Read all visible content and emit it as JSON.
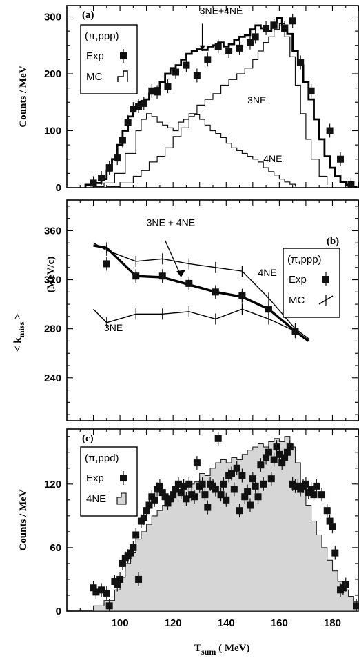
{
  "chart_data": [
    {
      "panel": "(a)",
      "type": "line",
      "ylabel": "Counts / MeV",
      "xlim": [
        80,
        190
      ],
      "ylim": [
        0,
        320
      ],
      "yticks": [
        0,
        100,
        200,
        300
      ],
      "legend": {
        "title": "(π,ppp)",
        "entries": [
          "Exp",
          "MC"
        ]
      },
      "annotations": [
        {
          "text": "3NE+4NE",
          "x": 130,
          "y": 305
        },
        {
          "text": "3NE",
          "x": 148,
          "y": 148
        },
        {
          "text": "4NE",
          "x": 154,
          "y": 45
        }
      ],
      "exp": {
        "name": "Exp",
        "x": [
          90,
          93,
          96,
          99,
          101,
          103,
          105,
          107,
          109,
          112,
          114,
          118,
          121,
          125,
          129,
          133,
          137,
          141,
          145,
          149,
          151,
          155,
          158,
          162,
          165,
          168,
          172,
          179,
          183,
          187
        ],
        "y": [
          8,
          17,
          35,
          52,
          83,
          115,
          138,
          143,
          148,
          170,
          168,
          178,
          203,
          215,
          197,
          225,
          248,
          240,
          245,
          255,
          265,
          280,
          285,
          280,
          293,
          220,
          170,
          100,
          50,
          5
        ]
      },
      "mc_total": {
        "name": "MC",
        "x": [
          87,
          90,
          93,
          95,
          97,
          99,
          101,
          103,
          105,
          107,
          109,
          111,
          113,
          115,
          117,
          119,
          121,
          123,
          125,
          127,
          129,
          131,
          133,
          135,
          137,
          139,
          141,
          143,
          145,
          147,
          149,
          151,
          153,
          155,
          157,
          159,
          161,
          163,
          165,
          167,
          169,
          171,
          173,
          175,
          177,
          179,
          181,
          183,
          185,
          187,
          189
        ],
        "y": [
          5,
          8,
          15,
          30,
          50,
          75,
          100,
          125,
          142,
          150,
          155,
          165,
          175,
          185,
          200,
          210,
          215,
          225,
          235,
          240,
          243,
          242,
          248,
          250,
          255,
          248,
          252,
          260,
          265,
          268,
          278,
          285,
          280,
          275,
          290,
          298,
          285,
          270,
          240,
          215,
          185,
          155,
          120,
          85,
          55,
          35,
          20,
          10,
          5,
          2,
          0
        ]
      },
      "mc_3ne": {
        "name": "3NE",
        "x": [
          95,
          100,
          105,
          108,
          111,
          114,
          117,
          120,
          123,
          126,
          129,
          132,
          135,
          138,
          141,
          144,
          147,
          150,
          152,
          154,
          156,
          158,
          160,
          162,
          164,
          166,
          168,
          170,
          172,
          175,
          178
        ],
        "y": [
          2,
          8,
          20,
          30,
          45,
          55,
          70,
          90,
          105,
          130,
          145,
          155,
          165,
          180,
          190,
          200,
          210,
          225,
          240,
          255,
          265,
          278,
          288,
          265,
          230,
          180,
          130,
          85,
          50,
          20,
          5
        ]
      },
      "mc_4ne": {
        "name": "4NE",
        "x": [
          90,
          94,
          98,
          102,
          106,
          108,
          110,
          112,
          114,
          116,
          118,
          120,
          122,
          124,
          126,
          128,
          130,
          132,
          134,
          136,
          138,
          140,
          142,
          144,
          146,
          148,
          150,
          152,
          154,
          156,
          158,
          160,
          162,
          164,
          166
        ],
        "y": [
          2,
          8,
          25,
          60,
          100,
          120,
          130,
          125,
          115,
          110,
          105,
          100,
          115,
          120,
          125,
          128,
          120,
          110,
          100,
          95,
          88,
          78,
          70,
          65,
          60,
          55,
          50,
          45,
          35,
          28,
          22,
          15,
          10,
          6,
          2
        ]
      }
    },
    {
      "panel": "(b)",
      "type": "line",
      "ylabel": "< k",
      "ylabel_sub": "miss",
      "ylabel_tail": " >",
      "ylabel_unit": "(MeV/c)",
      "xlim": [
        80,
        190
      ],
      "ylim": [
        205,
        385
      ],
      "yticks": [
        240,
        280,
        320,
        360
      ],
      "legend": {
        "title": "(π,ppp)",
        "entries": [
          "Exp",
          "MC"
        ]
      },
      "annotations": [
        {
          "text": "3NE + 4NE",
          "x": 110,
          "y": 364
        },
        {
          "text": "4NE",
          "x": 152,
          "y": 323
        },
        {
          "text": "3NE",
          "x": 94,
          "y": 278
        }
      ],
      "exp": {
        "name": "Exp",
        "x": [
          95,
          106,
          116,
          126,
          136,
          146,
          156,
          166
        ],
        "y": [
          333,
          323,
          323,
          317,
          310,
          307,
          296,
          278
        ]
      },
      "mc_total": {
        "name": "3NE + 4NE",
        "x": [
          90,
          95,
          106,
          116,
          126,
          136,
          146,
          156,
          166,
          171
        ],
        "y": [
          348,
          346,
          323,
          322,
          316,
          310,
          306,
          296,
          278,
          270
        ]
      },
      "mc_4ne": {
        "name": "4NE",
        "x": [
          90,
          95,
          106,
          116,
          126,
          136,
          146,
          156,
          166,
          171
        ],
        "y": [
          350,
          344,
          335,
          337,
          333,
          330,
          327,
          305,
          280,
          272
        ]
      },
      "mc_3ne": {
        "name": "3NE",
        "x": [
          90,
          95,
          106,
          116,
          126,
          136,
          146,
          156,
          166
        ],
        "y": [
          296,
          285,
          292,
          292,
          294,
          288,
          296,
          288,
          278
        ]
      }
    },
    {
      "panel": "(c)",
      "type": "line",
      "ylabel": "Counts / MeV",
      "xlabel": "T",
      "xlabel_sub": "sum",
      "xlabel_tail": " ( MeV)",
      "xlim": [
        80,
        190
      ],
      "ylim": [
        0,
        172
      ],
      "yticks": [
        0,
        60,
        120
      ],
      "xticks": [
        100,
        120,
        140,
        160,
        180
      ],
      "legend": {
        "title": "(π,ppd)",
        "entries": [
          "Exp",
          "4NE"
        ]
      },
      "exp": {
        "name": "Exp",
        "x": [
          90,
          91,
          93,
          95,
          96,
          98,
          99,
          100,
          101,
          102,
          103,
          104,
          105,
          106,
          107,
          108,
          109,
          110,
          111,
          112,
          113,
          114,
          115,
          116,
          117,
          118,
          119,
          120,
          121,
          122,
          123,
          124,
          125,
          126,
          127,
          128,
          129,
          130,
          131,
          132,
          133,
          134,
          135,
          136,
          137,
          138,
          139,
          140,
          141,
          142,
          143,
          144,
          145,
          146,
          147,
          148,
          149,
          150,
          151,
          152,
          153,
          154,
          155,
          156,
          157,
          158,
          159,
          160,
          161,
          162,
          163,
          164,
          165,
          166,
          167,
          168,
          169,
          170,
          171,
          172,
          173,
          174,
          176,
          178,
          179,
          180,
          181,
          183,
          184,
          185,
          189
        ],
        "y": [
          22,
          18,
          20,
          17,
          5,
          28,
          25,
          30,
          45,
          50,
          52,
          55,
          60,
          72,
          30,
          85,
          88,
          95,
          100,
          108,
          105,
          115,
          118,
          112,
          108,
          102,
          106,
          110,
          115,
          120,
          112,
          118,
          106,
          120,
          110,
          108,
          140,
          118,
          120,
          110,
          98,
          120,
          118,
          115,
          163,
          110,
          120,
          105,
          128,
          130,
          115,
          135,
          95,
          128,
          108,
          113,
          100,
          125,
          118,
          108,
          138,
          120,
          145,
          150,
          125,
          143,
          155,
          148,
          140,
          145,
          150,
          155,
          120,
          118,
          118,
          115,
          118,
          120,
          112,
          115,
          110,
          118,
          110,
          95,
          85,
          80,
          55,
          20,
          22,
          25,
          5
        ]
      },
      "mc_4ne": {
        "name": "4NE",
        "x": [
          90,
          94,
          98,
          100,
          102,
          104,
          106,
          108,
          110,
          112,
          114,
          116,
          118,
          120,
          122,
          124,
          126,
          128,
          130,
          132,
          134,
          136,
          138,
          140,
          142,
          144,
          146,
          148,
          150,
          152,
          154,
          156,
          158,
          160,
          162,
          164,
          166,
          168,
          170,
          172,
          174,
          176,
          178,
          180,
          182,
          184,
          186,
          188,
          190
        ],
        "y": [
          5,
          10,
          20,
          32,
          45,
          55,
          68,
          75,
          82,
          90,
          95,
          100,
          108,
          112,
          115,
          118,
          120,
          122,
          130,
          128,
          135,
          140,
          143,
          140,
          145,
          143,
          148,
          152,
          155,
          158,
          155,
          160,
          163,
          160,
          165,
          155,
          140,
          120,
          100,
          85,
          72,
          60,
          48,
          38,
          28,
          20,
          14,
          9,
          5
        ]
      }
    }
  ]
}
